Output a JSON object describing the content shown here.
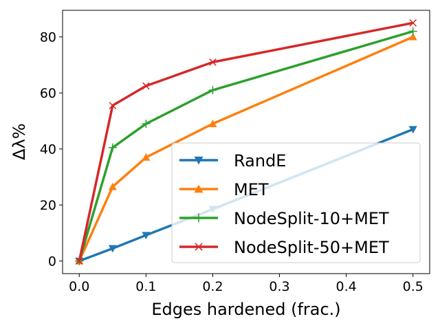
{
  "chart_data": {
    "type": "line",
    "xlabel": "Edges hardened (frac.)",
    "ylabel": "Δλ%",
    "xlim": [
      -0.025,
      0.525
    ],
    "ylim": [
      -4.5,
      89.5
    ],
    "xticks": [
      "0.0",
      "0.1",
      "0.2",
      "0.3",
      "0.4",
      "0.5"
    ],
    "yticks": [
      "0",
      "20",
      "40",
      "60",
      "80"
    ],
    "grid": false,
    "legend_position": "lower-right",
    "x": [
      0.0,
      0.05,
      0.1,
      0.2,
      0.5
    ],
    "series": [
      {
        "name": "RandE",
        "color": "#1f77b4",
        "marker": "triangle-down",
        "values": [
          0,
          4.5,
          9.2,
          18.5,
          47
        ]
      },
      {
        "name": "MET",
        "color": "#ff7f0e",
        "marker": "triangle-up",
        "values": [
          0,
          26.5,
          37,
          49,
          80
        ]
      },
      {
        "name": "NodeSplit-10+MET",
        "color": "#2ca02c",
        "marker": "plus",
        "values": [
          0,
          40.5,
          49,
          61,
          82
        ]
      },
      {
        "name": "NodeSplit-50+MET",
        "color": "#d62728",
        "marker": "x",
        "values": [
          0,
          55.5,
          62.5,
          71,
          85
        ]
      }
    ]
  }
}
